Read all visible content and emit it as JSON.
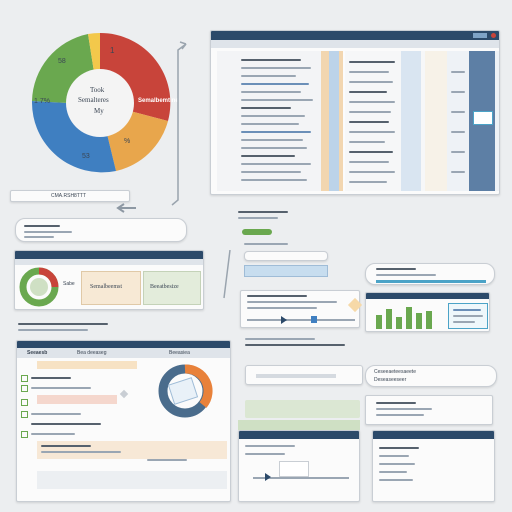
{
  "colors": {
    "navy": "#2c4a6a",
    "red": "#c8443a",
    "orange": "#e8a64c",
    "blue": "#3f7fc1",
    "green": "#6aa84f",
    "yellow": "#f3c84b",
    "teal": "#4ba3c7"
  },
  "donut": {
    "segment_labels": [
      "1",
      "58",
      "1 7%",
      "53",
      "%"
    ],
    "center_lines": [
      "Took",
      "Semalteres",
      "My"
    ]
  },
  "callout_label": "Semalbemtine",
  "bottom_left_button": "CMA.RSH8TTT",
  "window_title": "",
  "mid_left_panel": {
    "donut_label": "Sabe",
    "button_a": "Semalbeemst",
    "button_b": "Beeatbesize"
  },
  "bottom_table_header": "Beeasiea",
  "bottom_table_header_right": "Bea deeaseg",
  "bottom_table_title": "Seeaesb",
  "search_field": "",
  "caption_right": "Ceseeaeteesaeete",
  "caption_right_b": "Deseaseeseer"
}
